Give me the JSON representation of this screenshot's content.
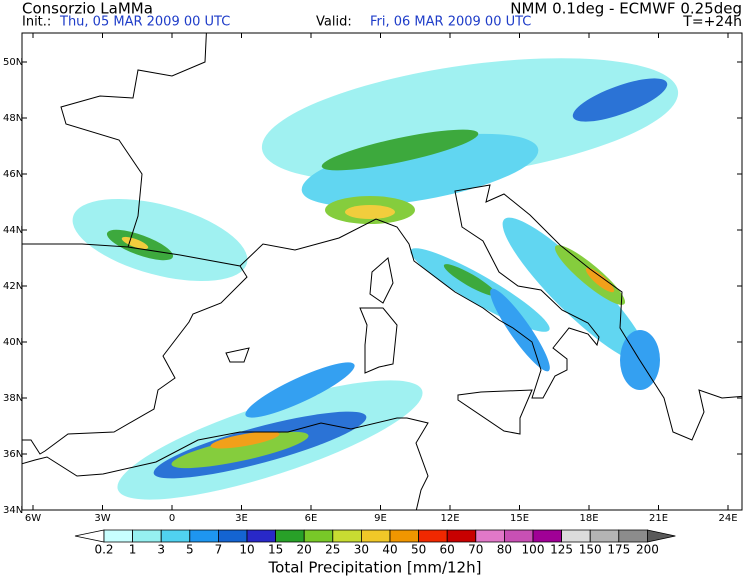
{
  "header": {
    "left_title": "Consorzio LaMMa",
    "init_label": "Init.:",
    "init_time": "Thu, 05 MAR 2009  00 UTC",
    "model": "NMM 0.1deg - ECMWF 0.25deg",
    "valid_label": "Valid:",
    "valid_time": "Fri, 06 MAR 2009  00 UTC",
    "forecast_step": "T=+24h"
  },
  "map": {
    "lat_labels": [
      "50N",
      "48N",
      "46N",
      "44N",
      "42N",
      "40N",
      "38N",
      "36N",
      "34N"
    ],
    "lon_labels": [
      "6W",
      "3W",
      "0",
      "3E",
      "6E",
      "9E",
      "12E",
      "15E",
      "18E",
      "21E",
      "24E"
    ]
  },
  "legend": {
    "title": "Total Precipitation [mm/12h]",
    "levels": [
      0.2,
      1,
      3,
      5,
      7,
      10,
      15,
      20,
      25,
      30,
      40,
      50,
      60,
      70,
      80,
      100,
      125,
      150,
      175,
      200
    ],
    "colors": [
      "#ffffff",
      "#c8ffff",
      "#96f0f0",
      "#50d2f0",
      "#1e96f0",
      "#1464d2",
      "#2828c8",
      "#28a028",
      "#78c828",
      "#c8dc32",
      "#f0c828",
      "#f09600",
      "#f02800",
      "#c80000",
      "#e178c8",
      "#c850b4",
      "#a00096",
      "#dcdcdc",
      "#b4b4b4",
      "#8c8c8c",
      "#5a5a5a"
    ]
  }
}
